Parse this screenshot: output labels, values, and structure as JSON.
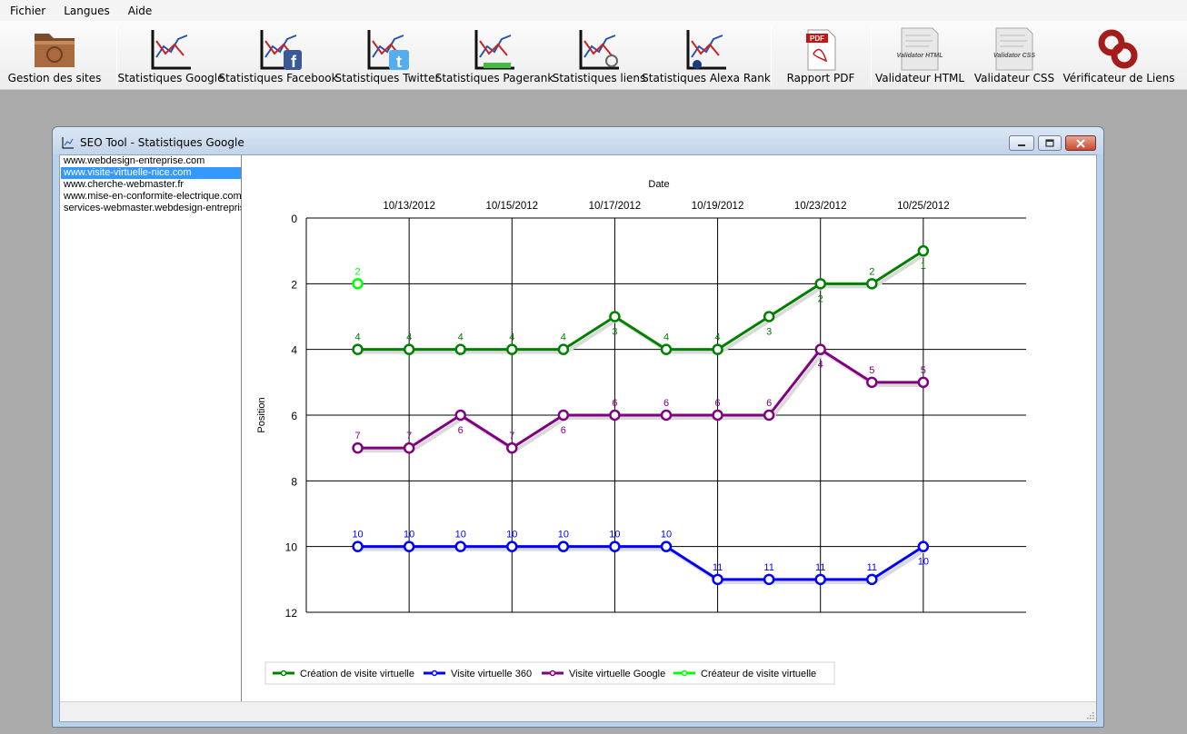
{
  "menu": [
    "Fichier",
    "Langues",
    "Aide"
  ],
  "toolbar": [
    {
      "label": "Gestion des sites",
      "icon": "folder-icon"
    },
    {
      "label": "Statistiques Google",
      "icon": "chart-icon"
    },
    {
      "label": "Statistiques Facebook",
      "icon": "chart-facebook-icon"
    },
    {
      "label": "Statistiques Twitter",
      "icon": "chart-twitter-icon"
    },
    {
      "label": "Statistiques Pagerank",
      "icon": "chart-pagerank-icon"
    },
    {
      "label": "Statistiques liens",
      "icon": "chart-links-icon"
    },
    {
      "label": "Statistiques Alexa Rank",
      "icon": "chart-alexa-icon"
    },
    {
      "label": "Rapport PDF",
      "icon": "pdf-icon"
    },
    {
      "label": "Validateur HTML",
      "icon": "html-validator-icon"
    },
    {
      "label": "Validateur CSS",
      "icon": "css-validator-icon"
    },
    {
      "label": "Vérificateur de Liens",
      "icon": "link-checker-icon"
    }
  ],
  "icon_text": {
    "pdf": "PDF",
    "html": "Validator HTML",
    "css": "Validator CSS"
  },
  "window": {
    "title": "SEO Tool - Statistiques Google"
  },
  "sites": [
    "www.webdesign-entreprise.com",
    "www.visite-virtuelle-nice.com",
    "www.cherche-webmaster.fr",
    "www.mise-en-conformite-electrique.com",
    "services-webmaster.webdesign-entreprise"
  ],
  "selected_site_index": 1,
  "chart_data": {
    "type": "line",
    "xlabel": "Date",
    "ylabel": "Position",
    "x_ticks": [
      "10/13/2012",
      "10/15/2012",
      "10/17/2012",
      "10/19/2012",
      "10/23/2012",
      "10/25/2012"
    ],
    "ylim": [
      0,
      12
    ],
    "y_inverted": true,
    "y_ticks": [
      0,
      2,
      4,
      6,
      8,
      10,
      12
    ],
    "grid": true,
    "legend_position": "bottom-left",
    "series": [
      {
        "name": "Création de visite virtuelle",
        "color": "#008000",
        "start": 1,
        "values": [
          4,
          4,
          4,
          4,
          4,
          3,
          4,
          4,
          3,
          2,
          2,
          1
        ]
      },
      {
        "name": "Visite virtuelle 360",
        "color": "#0000ff",
        "start": 1,
        "values": [
          10,
          10,
          10,
          10,
          10,
          10,
          10,
          11,
          11,
          11,
          11,
          10
        ]
      },
      {
        "name": "Visite virtuelle Google",
        "color": "#800080",
        "start": 1,
        "values": [
          7,
          7,
          6,
          7,
          6,
          6,
          6,
          6,
          6,
          4,
          5,
          5
        ]
      },
      {
        "name": "Créateur de visite virtuelle",
        "color": "#00ff00",
        "start": 1,
        "values": [
          2
        ]
      }
    ]
  }
}
